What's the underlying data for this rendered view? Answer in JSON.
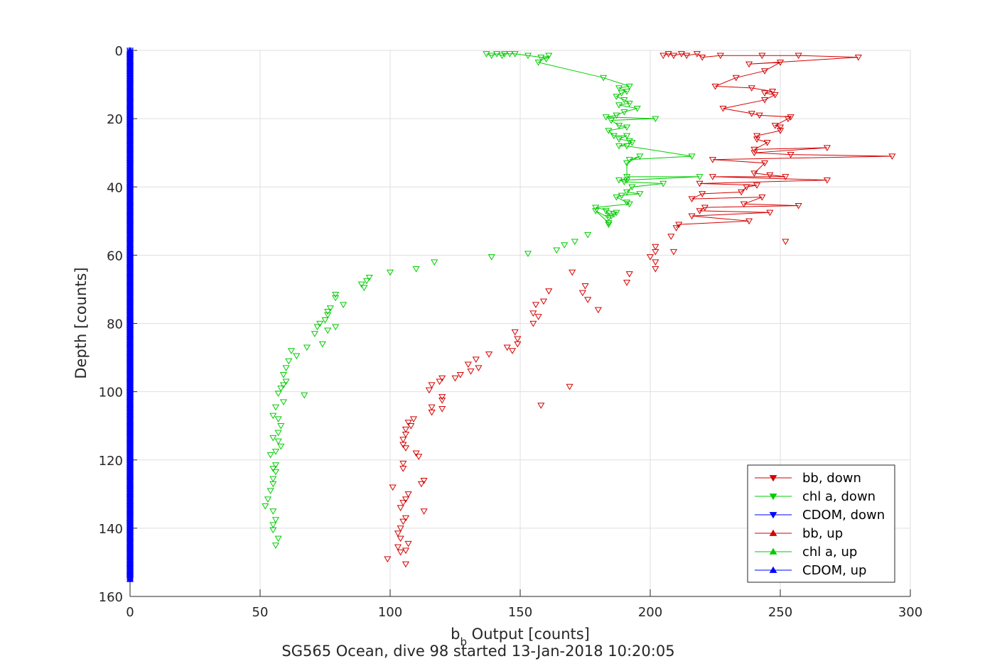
{
  "chart_data": {
    "type": "scatter",
    "xlabel_main": "b",
    "xlabel_sub": "b",
    "xlabel_rest": " Output [counts]",
    "ylabel": "Depth [counts]",
    "caption": "SG565 Ocean, dive 98 started 13-Jan-2018 10:20:05",
    "xlim": [
      0,
      300
    ],
    "ylim": [
      0,
      160
    ],
    "y_reversed": true,
    "grid": true,
    "xticks": [
      "0",
      "50",
      "100",
      "150",
      "200",
      "250",
      "300"
    ],
    "yticks": [
      "0",
      "20",
      "40",
      "60",
      "80",
      "100",
      "120",
      "140",
      "160"
    ],
    "legend_position": "bottom-right",
    "legend": [
      "bb, down",
      "chl a, down",
      "CDOM, down",
      "bb, up",
      "chl a, up",
      "CDOM, up"
    ],
    "colors": {
      "bb": "#d40000",
      "chl": "#00cc00",
      "cdom": "#0000ff"
    },
    "series": [
      {
        "name": "bb, down",
        "color": "#d40000",
        "marker": "down",
        "line_until_depth": 51,
        "x": [
          205,
          207,
          209,
          212,
          214,
          218,
          220,
          227,
          243,
          257,
          280,
          238,
          250,
          244,
          233,
          225,
          239,
          247,
          244,
          248,
          244,
          228,
          239,
          242,
          254,
          253,
          248,
          250,
          250,
          241,
          241,
          245,
          240,
          268,
          240,
          254,
          293,
          224,
          244,
          240,
          246,
          252,
          224,
          268,
          219,
          241,
          237,
          235,
          220,
          216,
          243,
          236,
          257,
          221,
          219,
          246,
          216,
          238,
          211,
          210
        ],
        "y": [
          1.5,
          1.0,
          1.5,
          1.0,
          1.5,
          1.0,
          2.0,
          1.5,
          1.5,
          1.5,
          2.0,
          4.0,
          3.5,
          6.0,
          8.0,
          10.5,
          11.0,
          12.0,
          12.5,
          13.0,
          14.5,
          17.0,
          18.5,
          19.0,
          19.5,
          20.0,
          22.0,
          22.5,
          23.5,
          25.0,
          26.0,
          27.0,
          29.0,
          28.5,
          30.0,
          30.5,
          31.0,
          32.0,
          33.0,
          36.0,
          36.5,
          37.0,
          37.0,
          38.0,
          39.0,
          39.5,
          40.0,
          41.5,
          42.0,
          43.5,
          43.0,
          45.0,
          45.5,
          46.0,
          47.0,
          47.5,
          48.5,
          50.0,
          51.0,
          52.0
        ],
        "x_pts": [
          208,
          252,
          202,
          202,
          209,
          200,
          202,
          202,
          192,
          191,
          170,
          175,
          176,
          180,
          174,
          161,
          159,
          156,
          155,
          157,
          155,
          148,
          149,
          149,
          145,
          147,
          138,
          133,
          130,
          134,
          131,
          127,
          125,
          120,
          119,
          116,
          115,
          120,
          120,
          169,
          116,
          158,
          120,
          116,
          109,
          107,
          108,
          106,
          106,
          105,
          105,
          106,
          110,
          111,
          105,
          105,
          113,
          112,
          101,
          107,
          106,
          105,
          104,
          113,
          106,
          105,
          104,
          103,
          104,
          107,
          103,
          104,
          106,
          99,
          106
        ],
        "y_pts": [
          54.5,
          56.0,
          57.5,
          59.0,
          59.0,
          60.5,
          62.0,
          64.0,
          65.5,
          68.0,
          65.0,
          69.0,
          73.0,
          76.0,
          71.0,
          70.5,
          73.5,
          74.5,
          77.0,
          78.0,
          80.0,
          82.5,
          84.5,
          86.0,
          87.0,
          88.0,
          89.0,
          90.5,
          92.0,
          93.0,
          94.0,
          95.0,
          96.0,
          96.0,
          97.0,
          98.0,
          99.5,
          101.5,
          102.5,
          98.5,
          104.5,
          104.0,
          105.0,
          106.0,
          108.0,
          109.0,
          110.0,
          111.0,
          112.5,
          114.0,
          115.5,
          116.5,
          118.0,
          119.0,
          121.0,
          122.5,
          126.0,
          127.0,
          128.0,
          130.0,
          131.5,
          132.5,
          134.0,
          135.0,
          137.0,
          138.0,
          140.0,
          141.5,
          143.0,
          144.5,
          145.5,
          147.0,
          146.5,
          149.0,
          150.5
        ]
      },
      {
        "name": "chl a, down",
        "color": "#00cc00",
        "marker": "down",
        "line_until_depth": 51,
        "x": [
          137,
          139,
          141,
          143,
          144,
          146,
          148,
          153,
          158,
          160,
          161,
          157,
          182,
          192,
          188,
          191,
          189,
          187,
          190,
          192,
          188,
          195,
          190,
          187,
          183,
          202,
          185,
          188,
          191,
          184,
          186,
          191,
          188,
          192,
          193,
          188,
          191,
          216,
          192,
          196,
          191,
          191,
          219,
          191,
          188,
          190,
          205,
          193,
          191,
          196,
          189,
          187,
          191,
          192,
          179,
          187,
          186,
          185,
          183,
          184,
          179,
          184,
          184
        ],
        "y": [
          1.0,
          1.5,
          1.0,
          1.5,
          1.0,
          1.0,
          1.0,
          1.5,
          2.0,
          2.5,
          1.5,
          3.5,
          8.0,
          10.5,
          11.0,
          12.0,
          12.5,
          13.5,
          14.5,
          15.5,
          16.0,
          17.0,
          18.0,
          19.0,
          19.5,
          20.0,
          20.5,
          22.0,
          22.5,
          23.5,
          25.0,
          25.0,
          26.0,
          26.5,
          27.0,
          28.0,
          28.0,
          31.0,
          32.0,
          31.0,
          33.0,
          37.0,
          37.0,
          38.0,
          38.0,
          38.5,
          39.0,
          40.0,
          41.5,
          42.0,
          42.5,
          43.0,
          44.5,
          45.0,
          46.0,
          47.5,
          48.0,
          48.5,
          47.0,
          49.0,
          47.0,
          50.5,
          51.0
        ],
        "x_pts": [
          176,
          171,
          167,
          164,
          153,
          139,
          117,
          110,
          100,
          92,
          91,
          89,
          90,
          79,
          79,
          82,
          77,
          76,
          76,
          75,
          73,
          72,
          76,
          79,
          71,
          74,
          68,
          62,
          64,
          61,
          60,
          59,
          60,
          59,
          58,
          57,
          67,
          59,
          56,
          55,
          57,
          58,
          57,
          55,
          57,
          58,
          56,
          54,
          56,
          55,
          56,
          55,
          55,
          54,
          53,
          52,
          55,
          56,
          55,
          55,
          57,
          56
        ],
        "y_pts": [
          54.0,
          56.0,
          57.0,
          58.5,
          59.5,
          60.5,
          62.0,
          64.0,
          65.0,
          66.5,
          67.5,
          68.5,
          69.5,
          71.5,
          72.5,
          74.5,
          75.5,
          76.5,
          77.5,
          79.0,
          80.0,
          81.0,
          82.0,
          81.0,
          83.0,
          86.0,
          87.0,
          88.0,
          89.5,
          91.0,
          93.0,
          95.0,
          97.0,
          98.0,
          99.0,
          100.5,
          101.0,
          103.0,
          104.5,
          107.0,
          108.0,
          110.0,
          112.0,
          113.5,
          114.5,
          116.0,
          117.5,
          118.5,
          121.5,
          122.5,
          123.5,
          125.5,
          127.0,
          129.0,
          131.5,
          133.5,
          135.0,
          137.5,
          139.0,
          140.5,
          143.0,
          145.0
        ]
      },
      {
        "name": "CDOM, down",
        "color": "#0000ff",
        "marker": "down",
        "x_constant": 0,
        "depth_range": [
          0,
          155
        ]
      },
      {
        "name": "bb, up",
        "color": "#d40000",
        "marker": "up"
      },
      {
        "name": "chl a, up",
        "color": "#00cc00",
        "marker": "up"
      },
      {
        "name": "CDOM, up",
        "color": "#0000ff",
        "marker": "up",
        "x_constant": 0,
        "depth_range": [
          0,
          155
        ]
      }
    ]
  }
}
